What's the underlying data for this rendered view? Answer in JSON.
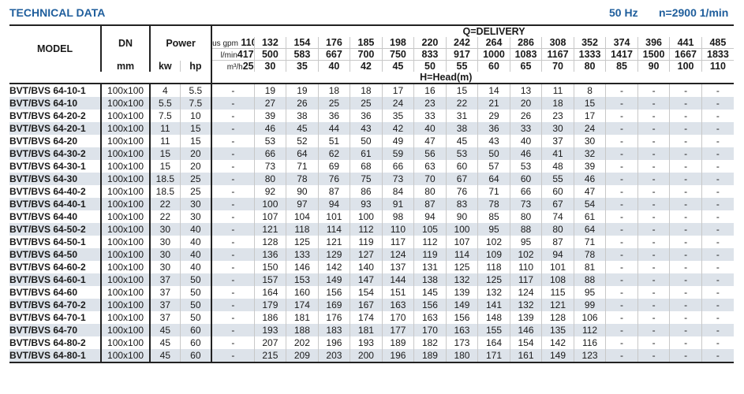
{
  "title": "TECHNICAL DATA",
  "frequency": "50 Hz",
  "speed": "n=2900 1/min",
  "header": {
    "model": "MODEL",
    "dn": "DN",
    "dn_unit": "mm",
    "power": "Power",
    "kw": "kw",
    "hp": "hp",
    "delivery": "Q=DELIVERY",
    "head": "H=Head(m)",
    "gpm_label": "us gpm",
    "lmin_label": "l/min",
    "m3h_label": "m³/h",
    "gpm": [
      "110",
      "132",
      "154",
      "176",
      "185",
      "198",
      "220",
      "242",
      "264",
      "286",
      "308",
      "352",
      "374",
      "396",
      "441",
      "485"
    ],
    "lmin": [
      "417",
      "500",
      "583",
      "667",
      "700",
      "750",
      "833",
      "917",
      "1000",
      "1083",
      "1167",
      "1333",
      "1417",
      "1500",
      "1667",
      "1833"
    ],
    "m3h": [
      "25",
      "30",
      "35",
      "40",
      "42",
      "45",
      "50",
      "55",
      "60",
      "65",
      "70",
      "80",
      "85",
      "90",
      "100",
      "110"
    ]
  },
  "rows": [
    {
      "model": "BVT/BVS 64-10-1",
      "dn": "100x100",
      "kw": "4",
      "hp": "5.5",
      "head": [
        "-",
        "19",
        "19",
        "18",
        "18",
        "17",
        "16",
        "15",
        "14",
        "13",
        "11",
        "8",
        "-",
        "-",
        "-",
        "-"
      ]
    },
    {
      "model": "BVT/BVS 64-10",
      "dn": "100x100",
      "kw": "5.5",
      "hp": "7.5",
      "head": [
        "-",
        "27",
        "26",
        "25",
        "25",
        "24",
        "23",
        "22",
        "21",
        "20",
        "18",
        "15",
        "-",
        "-",
        "-",
        "-"
      ]
    },
    {
      "model": "BVT/BVS 64-20-2",
      "dn": "100x100",
      "kw": "7.5",
      "hp": "10",
      "head": [
        "-",
        "39",
        "38",
        "36",
        "36",
        "35",
        "33",
        "31",
        "29",
        "26",
        "23",
        "17",
        "-",
        "-",
        "-",
        "-"
      ]
    },
    {
      "model": "BVT/BVS 64-20-1",
      "dn": "100x100",
      "kw": "11",
      "hp": "15",
      "head": [
        "-",
        "46",
        "45",
        "44",
        "43",
        "42",
        "40",
        "38",
        "36",
        "33",
        "30",
        "24",
        "-",
        "-",
        "-",
        "-"
      ]
    },
    {
      "model": "BVT/BVS 64-20",
      "dn": "100x100",
      "kw": "11",
      "hp": "15",
      "head": [
        "-",
        "53",
        "52",
        "51",
        "50",
        "49",
        "47",
        "45",
        "43",
        "40",
        "37",
        "30",
        "-",
        "-",
        "-",
        "-"
      ]
    },
    {
      "model": "BVT/BVS 64-30-2",
      "dn": "100x100",
      "kw": "15",
      "hp": "20",
      "head": [
        "-",
        "66",
        "64",
        "62",
        "61",
        "59",
        "56",
        "53",
        "50",
        "46",
        "41",
        "32",
        "-",
        "-",
        "-",
        "-"
      ]
    },
    {
      "model": "BVT/BVS 64-30-1",
      "dn": "100x100",
      "kw": "15",
      "hp": "20",
      "head": [
        "-",
        "73",
        "71",
        "69",
        "68",
        "66",
        "63",
        "60",
        "57",
        "53",
        "48",
        "39",
        "-",
        "-",
        "-",
        "-"
      ]
    },
    {
      "model": "BVT/BVS 64-30",
      "dn": "100x100",
      "kw": "18.5",
      "hp": "25",
      "head": [
        "-",
        "80",
        "78",
        "76",
        "75",
        "73",
        "70",
        "67",
        "64",
        "60",
        "55",
        "46",
        "-",
        "-",
        "-",
        "-"
      ]
    },
    {
      "model": "BVT/BVS 64-40-2",
      "dn": "100x100",
      "kw": "18.5",
      "hp": "25",
      "head": [
        "-",
        "92",
        "90",
        "87",
        "86",
        "84",
        "80",
        "76",
        "71",
        "66",
        "60",
        "47",
        "-",
        "-",
        "-",
        "-"
      ]
    },
    {
      "model": "BVT/BVS 64-40-1",
      "dn": "100x100",
      "kw": "22",
      "hp": "30",
      "head": [
        "-",
        "100",
        "97",
        "94",
        "93",
        "91",
        "87",
        "83",
        "78",
        "73",
        "67",
        "54",
        "-",
        "-",
        "-",
        "-"
      ]
    },
    {
      "model": "BVT/BVS 64-40",
      "dn": "100x100",
      "kw": "22",
      "hp": "30",
      "head": [
        "-",
        "107",
        "104",
        "101",
        "100",
        "98",
        "94",
        "90",
        "85",
        "80",
        "74",
        "61",
        "-",
        "-",
        "-",
        "-"
      ]
    },
    {
      "model": "BVT/BVS 64-50-2",
      "dn": "100x100",
      "kw": "30",
      "hp": "40",
      "head": [
        "-",
        "121",
        "118",
        "114",
        "112",
        "110",
        "105",
        "100",
        "95",
        "88",
        "80",
        "64",
        "-",
        "-",
        "-",
        "-"
      ]
    },
    {
      "model": "BVT/BVS 64-50-1",
      "dn": "100x100",
      "kw": "30",
      "hp": "40",
      "head": [
        "-",
        "128",
        "125",
        "121",
        "119",
        "117",
        "112",
        "107",
        "102",
        "95",
        "87",
        "71",
        "-",
        "-",
        "-",
        "-"
      ]
    },
    {
      "model": "BVT/BVS 64-50",
      "dn": "100x100",
      "kw": "30",
      "hp": "40",
      "head": [
        "-",
        "136",
        "133",
        "129",
        "127",
        "124",
        "119",
        "114",
        "109",
        "102",
        "94",
        "78",
        "-",
        "-",
        "-",
        "-"
      ]
    },
    {
      "model": "BVT/BVS 64-60-2",
      "dn": "100x100",
      "kw": "30",
      "hp": "40",
      "head": [
        "-",
        "150",
        "146",
        "142",
        "140",
        "137",
        "131",
        "125",
        "118",
        "110",
        "101",
        "81",
        "-",
        "-",
        "-",
        "-"
      ]
    },
    {
      "model": "BVT/BVS 64-60-1",
      "dn": "100x100",
      "kw": "37",
      "hp": "50",
      "head": [
        "-",
        "157",
        "153",
        "149",
        "147",
        "144",
        "138",
        "132",
        "125",
        "117",
        "108",
        "88",
        "-",
        "-",
        "-",
        "-"
      ]
    },
    {
      "model": "BVT/BVS 64-60",
      "dn": "100x100",
      "kw": "37",
      "hp": "50",
      "head": [
        "-",
        "164",
        "160",
        "156",
        "154",
        "151",
        "145",
        "139",
        "132",
        "124",
        "115",
        "95",
        "-",
        "-",
        "-",
        "-"
      ]
    },
    {
      "model": "BVT/BVS 64-70-2",
      "dn": "100x100",
      "kw": "37",
      "hp": "50",
      "head": [
        "-",
        "179",
        "174",
        "169",
        "167",
        "163",
        "156",
        "149",
        "141",
        "132",
        "121",
        "99",
        "-",
        "-",
        "-",
        "-"
      ]
    },
    {
      "model": "BVT/BVS 64-70-1",
      "dn": "100x100",
      "kw": "37",
      "hp": "50",
      "head": [
        "-",
        "186",
        "181",
        "176",
        "174",
        "170",
        "163",
        "156",
        "148",
        "139",
        "128",
        "106",
        "-",
        "-",
        "-",
        "-"
      ]
    },
    {
      "model": "BVT/BVS 64-70",
      "dn": "100x100",
      "kw": "45",
      "hp": "60",
      "head": [
        "-",
        "193",
        "188",
        "183",
        "181",
        "177",
        "170",
        "163",
        "155",
        "146",
        "135",
        "112",
        "-",
        "-",
        "-",
        "-"
      ]
    },
    {
      "model": "BVT/BVS 64-80-2",
      "dn": "100x100",
      "kw": "45",
      "hp": "60",
      "head": [
        "-",
        "207",
        "202",
        "196",
        "193",
        "189",
        "182",
        "173",
        "164",
        "154",
        "142",
        "116",
        "-",
        "-",
        "-",
        "-"
      ]
    },
    {
      "model": "BVT/BVS 64-80-1",
      "dn": "100x100",
      "kw": "45",
      "hp": "60",
      "head": [
        "-",
        "215",
        "209",
        "203",
        "200",
        "196",
        "189",
        "180",
        "171",
        "161",
        "149",
        "123",
        "-",
        "-",
        "-",
        "-"
      ]
    }
  ]
}
